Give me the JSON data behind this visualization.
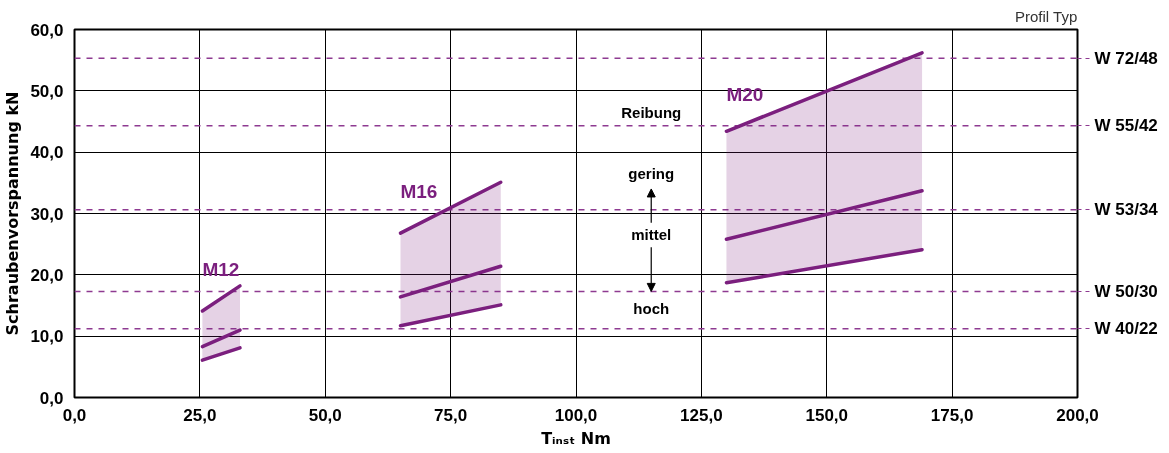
{
  "chart_data": {
    "type": "line",
    "xlabel": "Tᵢₙₛₜ Nm",
    "ylabel": "Schraubenvorspannung kN",
    "xlim": [
      0,
      200
    ],
    "xticks": [
      {
        "value": 0,
        "label": "0,0"
      },
      {
        "value": 25,
        "label": "25,0"
      },
      {
        "value": 50,
        "label": "50,0"
      },
      {
        "value": 75,
        "label": "75,0"
      },
      {
        "value": 100,
        "label": "100,0"
      },
      {
        "value": 125,
        "label": "125,0"
      },
      {
        "value": 150,
        "label": "150,0"
      },
      {
        "value": 175,
        "label": "175,0"
      },
      {
        "value": 200,
        "label": "200,0"
      }
    ],
    "ylim": [
      0,
      60
    ],
    "yticks": [
      {
        "value": 0,
        "label": "0,0"
      },
      {
        "value": 10,
        "label": "10,0"
      },
      {
        "value": 20,
        "label": "20,0"
      },
      {
        "value": 30,
        "label": "30,0"
      },
      {
        "value": 40,
        "label": "40,0"
      },
      {
        "value": 50,
        "label": "50,0"
      },
      {
        "value": 60,
        "label": "60,0"
      }
    ],
    "grid": true,
    "legend": false,
    "line_style": "solid",
    "marker": "none",
    "series": [
      {
        "name": "M12",
        "color": "#7b1f7e",
        "x": [
          25.5,
          33
        ],
        "values": [
          14.1,
          18.2
        ]
      },
      {
        "color": "#7b1f7e",
        "x": [
          25.5,
          33
        ],
        "values": [
          8.3,
          11.0
        ],
        "lower": [
          6.1,
          8.1
        ],
        "upper": [
          14.1,
          18.2
        ]
      },
      {
        "color": "#7b1f7e",
        "x": [
          25.5,
          33
        ],
        "values": [
          6.1,
          8.1
        ]
      },
      {
        "name": "M16",
        "color": "#7b1f7e",
        "x": [
          65,
          85
        ],
        "values": [
          26.8,
          35.1
        ]
      },
      {
        "color": "#7b1f7e",
        "x": [
          65,
          85
        ],
        "values": [
          16.4,
          21.4
        ],
        "lower": [
          11.7,
          15.1
        ],
        "upper": [
          26.8,
          35.1
        ]
      },
      {
        "color": "#7b1f7e",
        "x": [
          65,
          85
        ],
        "values": [
          11.7,
          15.1
        ]
      },
      {
        "name": "M20",
        "color": "#7b1f7e",
        "x": [
          130,
          169
        ],
        "values": [
          43.4,
          56.2
        ]
      },
      {
        "color": "#7b1f7e",
        "x": [
          130,
          169
        ],
        "values": [
          25.8,
          33.7
        ],
        "lower": [
          18.7,
          24.1
        ],
        "upper": [
          43.4,
          56.2
        ]
      },
      {
        "color": "#7b1f7e",
        "x": [
          130,
          169
        ],
        "values": [
          18.7,
          24.1
        ]
      }
    ],
    "ref_lines": [
      {
        "axis": "y",
        "value": 55.3,
        "label": "W 72/48",
        "color": "#8e3a91",
        "line_style": "dashed"
      },
      {
        "axis": "y",
        "value": 44.3,
        "label": "W 55/42",
        "color": "#8e3a91",
        "line_style": "dashed"
      },
      {
        "axis": "y",
        "value": 30.6,
        "label": "W 53/34",
        "color": "#8e3a91",
        "line_style": "dashed"
      },
      {
        "axis": "y",
        "value": 17.3,
        "label": "W 50/30",
        "color": "#8e3a91",
        "line_style": "dashed"
      },
      {
        "axis": "y",
        "value": 11.2,
        "label": "W 40/22",
        "color": "#8e3a91",
        "line_style": "dashed"
      }
    ],
    "annotations": [
      "Profil Typ",
      "Reibung",
      "gering",
      {
        "text": "mittel",
        "x": 115,
        "y": 17.3
      },
      "hoch"
    ]
  }
}
